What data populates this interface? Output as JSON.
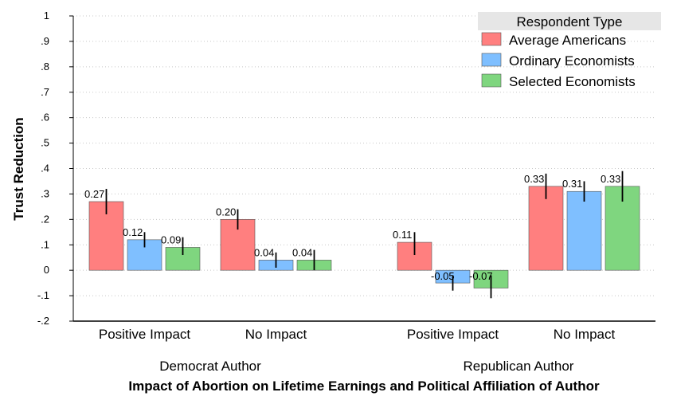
{
  "chart_data": {
    "type": "bar",
    "ylabel": "Trust Reduction",
    "xlabel": "Impact of Abortion on Lifetime Earnings and Political Affiliation of Author",
    "ylim": [
      -0.2,
      1
    ],
    "yticks": [
      "-.2",
      "-.1",
      "0",
      ".1",
      ".2",
      ".3",
      ".4",
      ".5",
      ".6",
      ".7",
      ".8",
      ".9",
      "1"
    ],
    "grid": true,
    "legend_position": "top-right",
    "legend_title": "Respondent Type",
    "groups": [
      {
        "label": "Democrat Author",
        "categories": [
          "Positive Impact",
          "No Impact"
        ]
      },
      {
        "label": "Republican Author",
        "categories": [
          "Positive Impact",
          "No Impact"
        ]
      }
    ],
    "series": [
      {
        "name": "Average Americans",
        "color": "#ff7f7f",
        "values": [
          0.27,
          0.2,
          0.11,
          0.33
        ],
        "labels": [
          "0.27",
          "0.20",
          "0.11",
          "0.33"
        ],
        "ci_low": [
          0.22,
          0.16,
          0.06,
          0.28
        ],
        "ci_high": [
          0.32,
          0.24,
          0.15,
          0.38
        ]
      },
      {
        "name": "Ordinary Economists",
        "color": "#7fbfff",
        "values": [
          0.12,
          0.04,
          -0.05,
          0.31
        ],
        "labels": [
          "0.12",
          "0.04",
          "-0.05",
          "0.31"
        ],
        "ci_low": [
          0.09,
          0.01,
          -0.08,
          0.27
        ],
        "ci_high": [
          0.15,
          0.07,
          -0.02,
          0.35
        ]
      },
      {
        "name": "Selected Economists",
        "color": "#7fd67f",
        "values": [
          0.09,
          0.04,
          -0.07,
          0.33
        ],
        "labels": [
          "0.09",
          "0.04",
          "-0.07",
          "0.33"
        ],
        "ci_low": [
          0.06,
          0.0,
          -0.11,
          0.27
        ],
        "ci_high": [
          0.13,
          0.08,
          -0.02,
          0.39
        ]
      }
    ]
  }
}
